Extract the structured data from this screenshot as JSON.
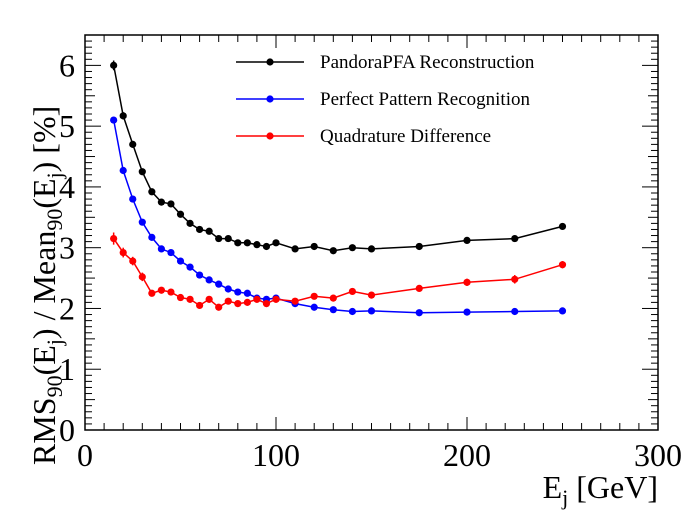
{
  "chart_data": {
    "type": "line",
    "title": "",
    "xlabel": {
      "main": "E",
      "sub": "j",
      "rest": " [GeV]"
    },
    "ylabel": {
      "parts": [
        {
          "t": "RMS",
          "s": "n"
        },
        {
          "t": "90",
          "s": "sub"
        },
        {
          "t": "(E",
          "s": "n"
        },
        {
          "t": "j",
          "s": "sub"
        },
        {
          "t": ") / Mean",
          "s": "n"
        },
        {
          "t": "90",
          "s": "sub"
        },
        {
          "t": "(E",
          "s": "n"
        },
        {
          "t": "j",
          "s": "sub"
        },
        {
          "t": ") [%]",
          "s": "n"
        }
      ]
    },
    "xlim": [
      0,
      300
    ],
    "ylim": [
      0,
      6.5
    ],
    "xticks": [
      0,
      100,
      200,
      300
    ],
    "xtick_labels": [
      "0",
      "100",
      "200",
      "300"
    ],
    "yticks": [
      0,
      1,
      2,
      3,
      4,
      5,
      6
    ],
    "ytick_labels": [
      "0",
      "1",
      "2",
      "3",
      "4",
      "5",
      "6"
    ],
    "grid": false,
    "legend_position": "top-right",
    "series": [
      {
        "name": "PandoraPFA Reconstruction",
        "color": "#000000",
        "x": [
          15,
          20,
          25,
          30,
          35,
          40,
          45,
          50,
          55,
          60,
          65,
          70,
          75,
          80,
          85,
          90,
          95,
          100,
          110,
          120,
          130,
          140,
          150,
          175,
          200,
          225,
          250
        ],
        "y": [
          6.0,
          5.17,
          4.7,
          4.25,
          3.92,
          3.75,
          3.72,
          3.55,
          3.4,
          3.3,
          3.27,
          3.15,
          3.15,
          3.08,
          3.08,
          3.05,
          3.02,
          3.08,
          2.98,
          3.02,
          2.95,
          3.0,
          2.98,
          3.02,
          3.12,
          3.15,
          3.35
        ],
        "err": [
          0.08,
          0.06,
          0.05,
          0.05,
          0.04,
          0.04,
          0.03,
          0.03,
          0.03,
          0.03,
          0.03,
          0.03,
          0.03,
          0.03,
          0.03,
          0.03,
          0.03,
          0.03,
          0.03,
          0.03,
          0.03,
          0.03,
          0.03,
          0.03,
          0.03,
          0.03,
          0.03
        ]
      },
      {
        "name": "Perfect Pattern Recognition",
        "color": "#0000ff",
        "x": [
          15,
          20,
          25,
          30,
          35,
          40,
          45,
          50,
          55,
          60,
          65,
          70,
          75,
          80,
          85,
          90,
          95,
          100,
          110,
          120,
          130,
          140,
          150,
          175,
          200,
          225,
          250
        ],
        "y": [
          5.1,
          4.27,
          3.8,
          3.42,
          3.17,
          2.98,
          2.92,
          2.78,
          2.68,
          2.55,
          2.47,
          2.4,
          2.32,
          2.27,
          2.25,
          2.17,
          2.15,
          2.17,
          2.08,
          2.02,
          1.98,
          1.95,
          1.96,
          1.93,
          1.94,
          1.95,
          1.96
        ],
        "err": [
          0.05,
          0.04,
          0.04,
          0.04,
          0.03,
          0.03,
          0.03,
          0.03,
          0.03,
          0.03,
          0.03,
          0.03,
          0.03,
          0.03,
          0.03,
          0.03,
          0.03,
          0.03,
          0.02,
          0.02,
          0.02,
          0.02,
          0.02,
          0.02,
          0.02,
          0.02,
          0.02
        ]
      },
      {
        "name": "Quadrature Difference",
        "color": "#ff0000",
        "x": [
          15,
          20,
          25,
          30,
          35,
          40,
          45,
          50,
          55,
          60,
          65,
          70,
          75,
          80,
          85,
          90,
          95,
          100,
          110,
          120,
          130,
          140,
          150,
          175,
          200,
          225,
          250
        ],
        "y": [
          3.15,
          2.92,
          2.78,
          2.52,
          2.25,
          2.3,
          2.27,
          2.18,
          2.15,
          2.05,
          2.15,
          2.02,
          2.12,
          2.08,
          2.1,
          2.15,
          2.08,
          2.15,
          2.12,
          2.2,
          2.17,
          2.28,
          2.22,
          2.33,
          2.43,
          2.48,
          2.72
        ],
        "err": [
          0.1,
          0.08,
          0.07,
          0.07,
          0.05,
          0.05,
          0.05,
          0.05,
          0.05,
          0.05,
          0.05,
          0.05,
          0.05,
          0.05,
          0.05,
          0.05,
          0.05,
          0.05,
          0.05,
          0.05,
          0.05,
          0.05,
          0.05,
          0.05,
          0.06,
          0.07,
          0.06
        ]
      }
    ]
  }
}
